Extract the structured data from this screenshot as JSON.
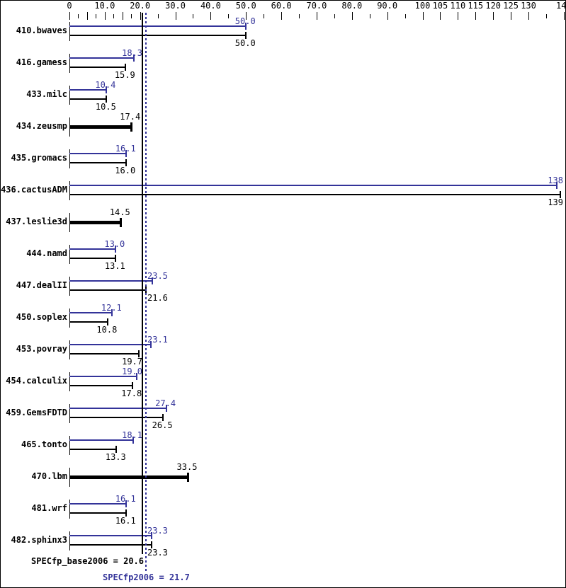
{
  "chart_data": {
    "type": "bar",
    "orientation": "horizontal",
    "legend_position": "none",
    "grid": false,
    "colors": {
      "peak": "#333399",
      "base": "#000000",
      "background": "#ffffff",
      "frame_border": "#000000"
    },
    "axis": {
      "position": "top",
      "min": 0,
      "max": 140.6,
      "tick_labels": [
        {
          "value": 0,
          "text": "0"
        },
        {
          "value": 10,
          "text": "10.0"
        },
        {
          "value": 20,
          "text": "20.0"
        },
        {
          "value": 30,
          "text": "30.0"
        },
        {
          "value": 40,
          "text": "40.0"
        },
        {
          "value": 50,
          "text": "50.0"
        },
        {
          "value": 60,
          "text": "60.0"
        },
        {
          "value": 70,
          "text": "70.0"
        },
        {
          "value": 80,
          "text": "80.0"
        },
        {
          "value": 90,
          "text": "90.0"
        },
        {
          "value": 100,
          "text": "100"
        },
        {
          "value": 105,
          "text": "105"
        },
        {
          "value": 110,
          "text": "110"
        },
        {
          "value": 115,
          "text": "115"
        },
        {
          "value": 120,
          "text": "120"
        },
        {
          "value": 125,
          "text": "125"
        },
        {
          "value": 130,
          "text": "130"
        },
        {
          "value": 140,
          "text": "140"
        }
      ],
      "major_ticks": [
        0,
        5,
        10,
        15,
        20,
        30,
        40,
        50,
        60,
        70,
        80,
        90,
        100,
        105,
        110,
        115,
        120,
        125,
        130,
        140
      ],
      "minor_ticks": [
        2.5,
        7.5,
        12.5,
        17.5,
        25,
        35,
        45,
        55,
        65,
        75,
        85,
        95,
        135
      ]
    },
    "benchmarks": [
      {
        "name": "410.bwaves",
        "peak": 50.0,
        "peak_label": "50.0",
        "base": 50.0,
        "base_label": "50.0",
        "single_bar": false
      },
      {
        "name": "416.gamess",
        "peak": 18.3,
        "peak_label": "18.3",
        "base": 15.9,
        "base_label": "15.9",
        "single_bar": false
      },
      {
        "name": "433.milc",
        "peak": 10.4,
        "peak_label": "10.4",
        "base": 10.5,
        "base_label": "10.5",
        "single_bar": false
      },
      {
        "name": "434.zeusmp",
        "peak": null,
        "peak_label": null,
        "base": 17.4,
        "base_label": "17.4",
        "single_bar": true
      },
      {
        "name": "435.gromacs",
        "peak": 16.1,
        "peak_label": "16.1",
        "base": 16.0,
        "base_label": "16.0",
        "single_bar": false
      },
      {
        "name": "436.cactusADM",
        "peak": 138,
        "peak_label": "138",
        "base": 139,
        "base_label": "139",
        "single_bar": false
      },
      {
        "name": "437.leslie3d",
        "peak": null,
        "peak_label": null,
        "base": 14.5,
        "base_label": "14.5",
        "single_bar": true
      },
      {
        "name": "444.namd",
        "peak": 13.0,
        "peak_label": "13.0",
        "base": 13.1,
        "base_label": "13.1",
        "single_bar": false
      },
      {
        "name": "447.dealII",
        "peak": 23.5,
        "peak_label": "23.5",
        "base": 21.6,
        "base_label": "21.6",
        "single_bar": false
      },
      {
        "name": "450.soplex",
        "peak": 12.1,
        "peak_label": "12.1",
        "base": 10.8,
        "base_label": "10.8",
        "single_bar": false
      },
      {
        "name": "453.povray",
        "peak": 23.1,
        "peak_label": "23.1",
        "base": 19.7,
        "base_label": "19.7",
        "single_bar": false
      },
      {
        "name": "454.calculix",
        "peak": 19.0,
        "peak_label": "19.0",
        "base": 17.8,
        "base_label": "17.8",
        "single_bar": false
      },
      {
        "name": "459.GemsFDTD",
        "peak": 27.4,
        "peak_label": "27.4",
        "base": 26.5,
        "base_label": "26.5",
        "single_bar": false
      },
      {
        "name": "465.tonto",
        "peak": 18.1,
        "peak_label": "18.1",
        "base": 13.3,
        "base_label": "13.3",
        "single_bar": false
      },
      {
        "name": "470.lbm",
        "peak": null,
        "peak_label": null,
        "base": 33.5,
        "base_label": "33.5",
        "single_bar": true
      },
      {
        "name": "481.wrf",
        "peak": 16.1,
        "peak_label": "16.1",
        "base": 16.1,
        "base_label": "16.1",
        "single_bar": false
      },
      {
        "name": "482.sphinx3",
        "peak": 23.3,
        "peak_label": "23.3",
        "base": 23.3,
        "base_label": "23.3",
        "single_bar": false
      }
    ],
    "mean_lines": [
      {
        "id": "base",
        "label": "SPECfp_base2006 = 20.6",
        "value": 20.6,
        "style": "solid",
        "color": "#000000"
      },
      {
        "id": "peak",
        "label": "SPECfp2006 = 21.7",
        "value": 21.7,
        "style": "dotted",
        "color": "#333399"
      }
    ]
  }
}
